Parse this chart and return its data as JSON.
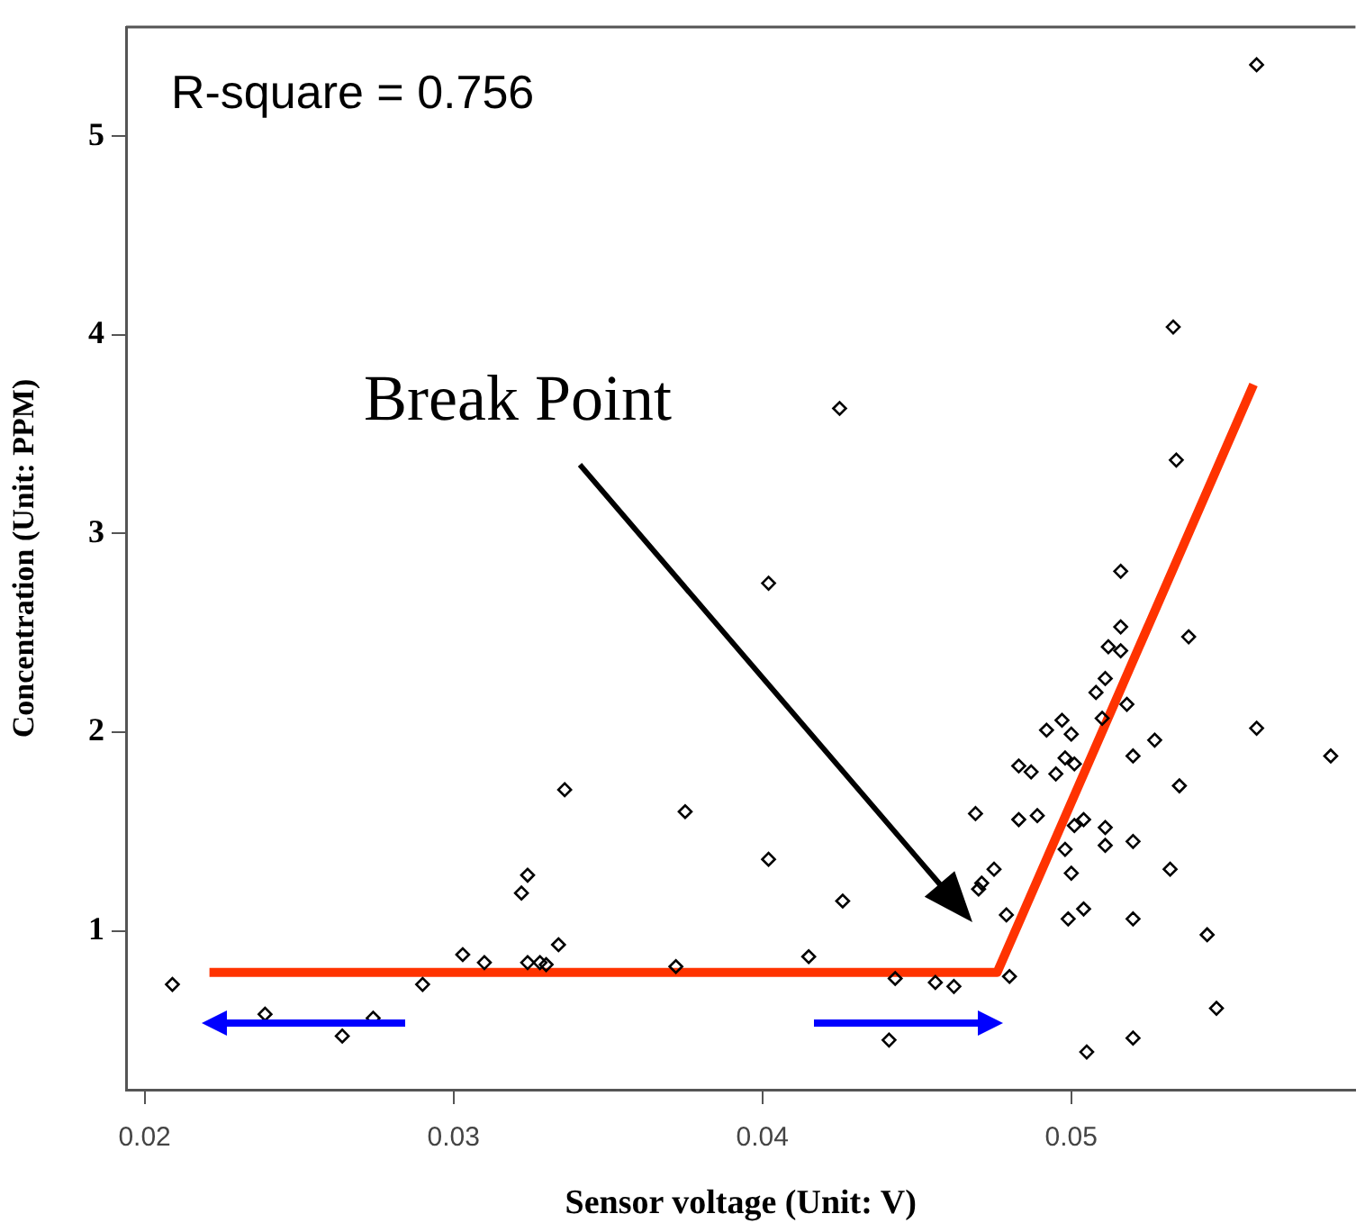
{
  "chart_data": {
    "type": "scatter",
    "xlabel": "Sensor voltage (Unit: V)",
    "ylabel": "Concentration (Unit: PPM)",
    "xlim": [
      0.0194,
      0.0592
    ],
    "ylim": [
      0.2,
      5.55
    ],
    "xticks": [
      0.02,
      0.03,
      0.04,
      0.05
    ],
    "yticks": [
      1,
      2,
      3,
      4,
      5
    ],
    "grid": false,
    "legend": false,
    "marker": "diamond",
    "annotations": [
      "R-square = 0.756",
      "Break Point"
    ],
    "series": [
      {
        "color": "#000000",
        "x": [
          0.0209,
          0.0336,
          0.0375,
          0.0402,
          0.0324,
          0.0322,
          0.0334,
          0.0303,
          0.031,
          0.0324,
          0.0328,
          0.033,
          0.0372,
          0.029,
          0.0239,
          0.0274,
          0.0264,
          0.0402,
          0.0516,
          0.0516,
          0.0512,
          0.0516,
          0.0538,
          0.0511,
          0.0508,
          0.0518,
          0.051,
          0.0497,
          0.0492,
          0.05,
          0.056,
          0.0584,
          0.0527,
          0.052,
          0.0483,
          0.0487,
          0.0495,
          0.0498,
          0.0501,
          0.0535,
          0.0469,
          0.0483,
          0.0489,
          0.0501,
          0.0504,
          0.0511,
          0.0511,
          0.052,
          0.0498,
          0.05,
          0.0532,
          0.0475,
          0.0471,
          0.047,
          0.0426,
          0.0479,
          0.0499,
          0.0504,
          0.052,
          0.0544,
          0.0415,
          0.0456,
          0.0462,
          0.048,
          0.0547,
          0.0441,
          0.052,
          0.0505,
          0.0443,
          0.056,
          0.0533,
          0.0534,
          0.0425
        ],
        "values": [
          0.73,
          1.71,
          1.6,
          1.36,
          1.28,
          1.19,
          0.93,
          0.88,
          0.84,
          0.84,
          0.84,
          0.83,
          0.82,
          0.73,
          0.58,
          0.56,
          0.47,
          2.75,
          2.81,
          2.53,
          2.43,
          2.41,
          2.48,
          2.27,
          2.2,
          2.14,
          2.07,
          2.06,
          2.01,
          1.99,
          2.02,
          1.88,
          1.96,
          1.88,
          1.83,
          1.8,
          1.79,
          1.87,
          1.84,
          1.73,
          1.59,
          1.56,
          1.58,
          1.53,
          1.56,
          1.52,
          1.43,
          1.45,
          1.41,
          1.29,
          1.31,
          1.31,
          1.24,
          1.21,
          1.15,
          1.08,
          1.06,
          1.11,
          1.06,
          0.98,
          0.87,
          0.74,
          0.72,
          0.77,
          0.61,
          0.45,
          0.46,
          0.39,
          0.76,
          5.36,
          4.04,
          3.37,
          3.63
        ]
      },
      {
        "type": "line",
        "color": "#ff3300",
        "marker": "none",
        "line_style": "solid",
        "x": [
          0.0221,
          0.0476,
          0.0559
        ],
        "values": [
          0.79,
          0.79,
          3.75
        ]
      }
    ]
  }
}
